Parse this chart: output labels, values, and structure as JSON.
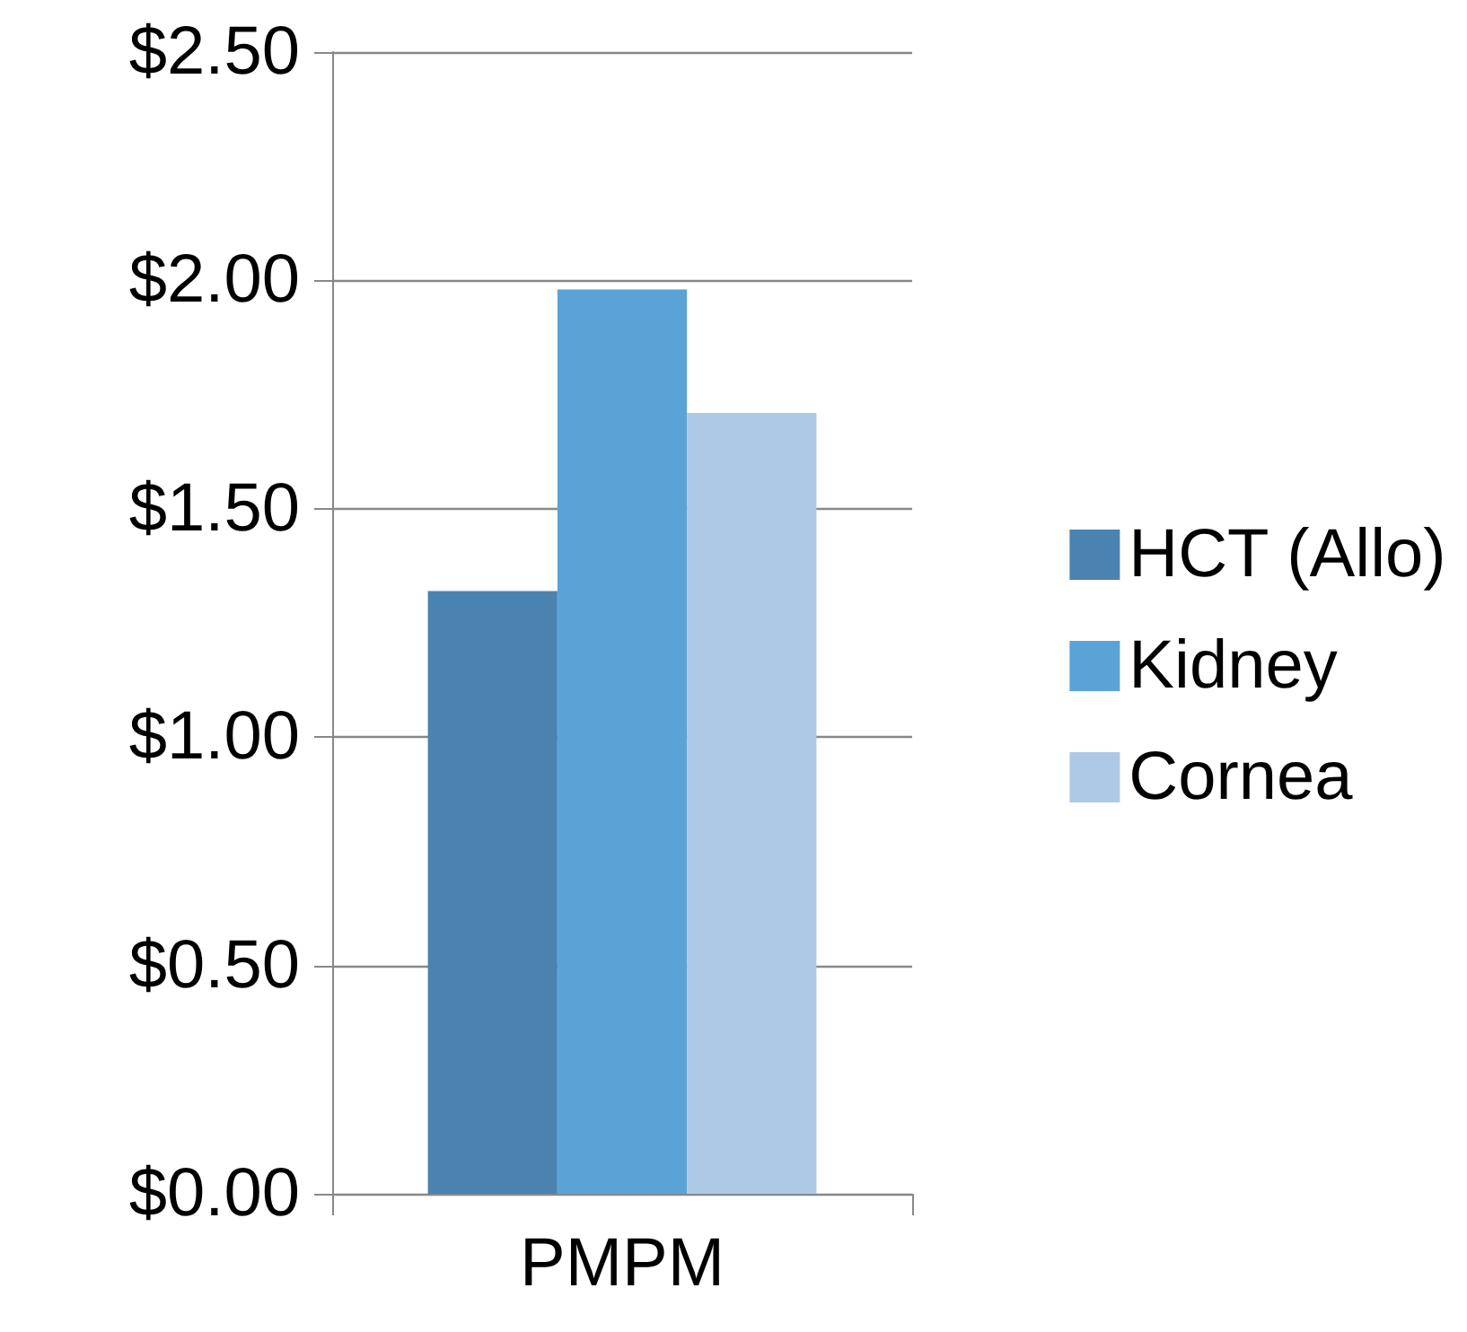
{
  "chart_data": {
    "type": "bar",
    "categories": [
      "PMPM"
    ],
    "series": [
      {
        "name": "HCT (Allo)",
        "color": "#4a83b0",
        "values": [
          1.32
        ]
      },
      {
        "name": "Kidney",
        "color": "#5ba3d6",
        "values": [
          1.98
        ]
      },
      {
        "name": "Cornea",
        "color": "#adc9e6",
        "values": [
          1.71
        ]
      }
    ],
    "ylim": [
      0,
      2.5
    ],
    "yticks": [
      {
        "value": 0,
        "label": "$0.00"
      },
      {
        "value": 0.5,
        "label": "$0.50"
      },
      {
        "value": 1,
        "label": "$1.00"
      },
      {
        "value": 1.5,
        "label": "$1.50"
      },
      {
        "value": 2,
        "label": "$2.00"
      },
      {
        "value": 2.5,
        "label": "$2.50"
      }
    ],
    "grid": "y",
    "legend": "right"
  }
}
